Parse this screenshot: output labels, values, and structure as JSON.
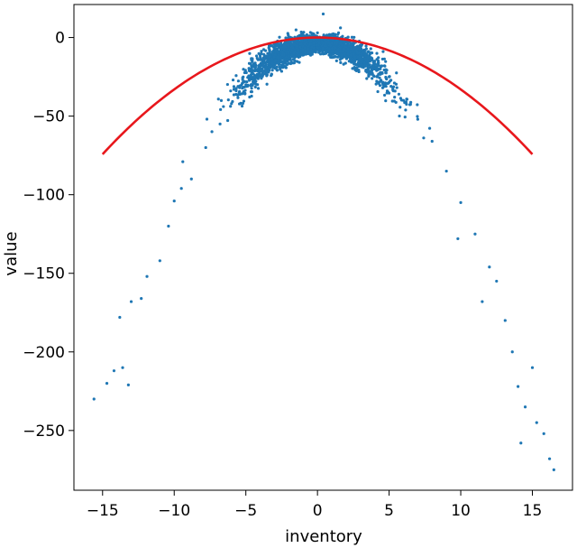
{
  "chart_data": {
    "type": "scatter",
    "title": "",
    "xlabel": "inventory",
    "ylabel": "value",
    "xlim": [
      -17,
      17.8
    ],
    "ylim": [
      -288,
      21
    ],
    "xticks": [
      -15,
      -10,
      -5,
      0,
      5,
      10,
      15
    ],
    "xtick_labels": [
      "−15",
      "−10",
      "−5",
      "0",
      "5",
      "10",
      "15"
    ],
    "yticks": [
      0,
      -50,
      -100,
      -150,
      -200,
      -250
    ],
    "ytick_labels": [
      "0",
      "−50",
      "−100",
      "−150",
      "−200",
      "−250"
    ],
    "grid": false,
    "series": [
      {
        "kind": "scatter",
        "color": "#1f77b4",
        "description_points": [
          [
            -15.6,
            -230
          ],
          [
            -14.7,
            -220
          ],
          [
            -14.2,
            -212
          ],
          [
            -13.6,
            -210
          ],
          [
            -13.2,
            -221
          ],
          [
            -13.8,
            -178
          ],
          [
            -13.0,
            -168
          ],
          [
            -12.3,
            -166
          ],
          [
            -11.9,
            -152
          ],
          [
            -11.0,
            -142
          ],
          [
            -10.4,
            -120
          ],
          [
            -10.0,
            -104
          ],
          [
            -9.5,
            -96
          ],
          [
            -9.4,
            -79
          ],
          [
            -8.8,
            -90
          ],
          [
            -7.8,
            -70
          ],
          [
            -6.8,
            -55
          ],
          [
            -6.0,
            -42
          ],
          [
            -5.0,
            -30
          ],
          [
            -4.0,
            -20
          ],
          [
            -3.0,
            -12
          ],
          [
            -2.0,
            -6
          ],
          [
            -1.0,
            -2
          ],
          [
            0.0,
            3
          ],
          [
            0.4,
            15
          ],
          [
            1.0,
            2
          ],
          [
            2.0,
            -3
          ],
          [
            3.0,
            -8
          ],
          [
            4.0,
            -15
          ],
          [
            5.0,
            -25
          ],
          [
            6.0,
            -40
          ],
          [
            7.0,
            -52
          ],
          [
            8.0,
            -66
          ],
          [
            9.0,
            -85
          ],
          [
            10.0,
            -105
          ],
          [
            11.0,
            -125
          ],
          [
            12.0,
            -146
          ],
          [
            12.5,
            -155
          ],
          [
            13.1,
            -180
          ],
          [
            13.6,
            -200
          ],
          [
            14.0,
            -222
          ],
          [
            14.5,
            -235
          ],
          [
            14.2,
            -258
          ],
          [
            15.3,
            -245
          ],
          [
            15.8,
            -252
          ],
          [
            16.2,
            -268
          ],
          [
            16.5,
            -275
          ],
          [
            15.0,
            -210
          ],
          [
            11.5,
            -168
          ],
          [
            9.8,
            -128
          ]
        ],
        "model": {
          "formula": "y = -1.0 * x^2",
          "noise_scale_x": 4.2
        }
      },
      {
        "kind": "line",
        "color": "#e8171c",
        "x_range": [
          -15,
          15
        ],
        "formula": "y = -0.33 * x^2"
      }
    ]
  }
}
